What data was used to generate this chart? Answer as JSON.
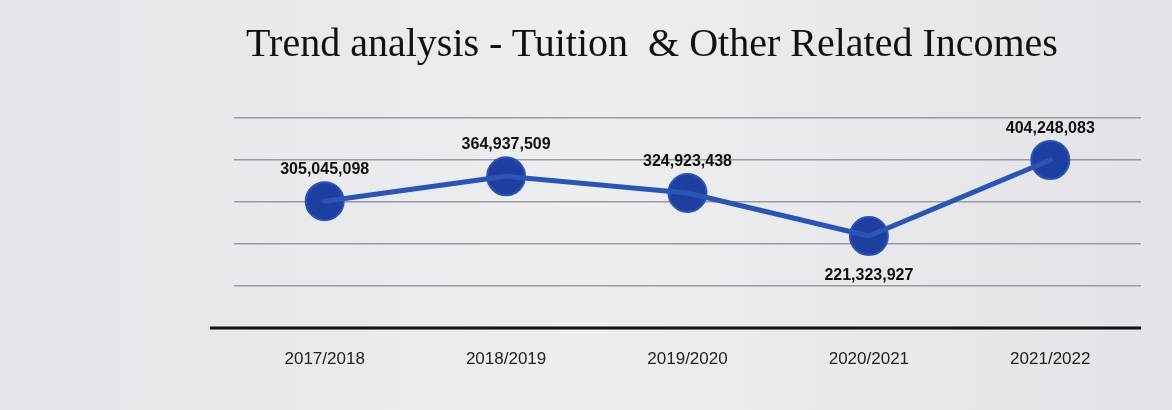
{
  "chart_data": {
    "type": "line",
    "title": "Trend analysis - Tuition  & Other Related Incomes",
    "categories": [
      "2017/2018",
      "2018/2019",
      "2019/2020",
      "2020/2021",
      "2021/2022"
    ],
    "series": [
      {
        "color": "#2b55b5",
        "values": [
          305045098,
          364937509,
          324923438,
          221323927,
          404248083
        ],
        "value_labels": [
          "305,045,098",
          "364,937,509",
          "324,923,438",
          "221,323,927",
          "404,248,083"
        ]
      }
    ],
    "marker": "circle",
    "line_style": "solid"
  }
}
